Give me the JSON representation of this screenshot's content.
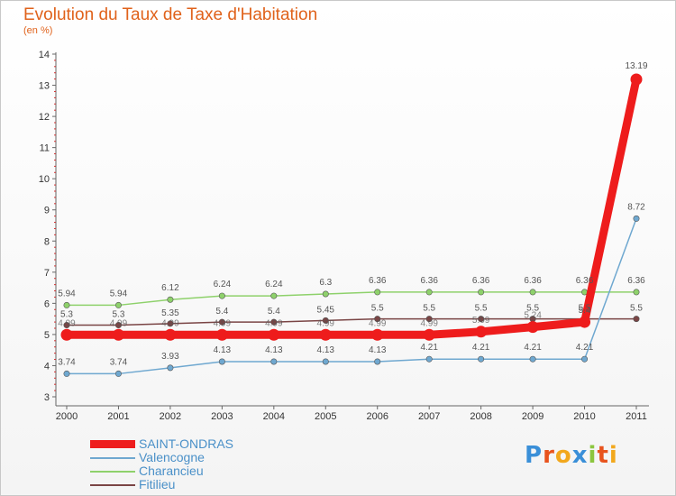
{
  "header": {
    "title": "Evolution du Taux de Taxe d'Habitation",
    "subtitle": "(en %)"
  },
  "logo": {
    "text": "Proxiti",
    "letters": [
      "P",
      "r",
      "o",
      "x",
      "i",
      "t",
      "i"
    ],
    "colors": [
      "#3a8fd8",
      "#e8541e",
      "#f2a81d",
      "#3a8fd8",
      "#8cc63f",
      "#e8541e",
      "#f2a81d"
    ]
  },
  "chart_data": {
    "type": "line",
    "categories": [
      "2000",
      "2001",
      "2002",
      "2003",
      "2004",
      "2005",
      "2006",
      "2007",
      "2008",
      "2009",
      "2010",
      "2011"
    ],
    "ylim": [
      3,
      14
    ],
    "yticks": [
      3,
      4,
      5,
      6,
      7,
      8,
      9,
      10,
      11,
      12,
      13,
      14
    ],
    "grid": false,
    "legend_position": "bottom-left",
    "series": [
      {
        "name": "SAINT-ONDRAS",
        "color": "#ee1c1c",
        "values": [
          4.99,
          4.99,
          4.99,
          4.99,
          4.99,
          4.99,
          4.99,
          4.99,
          5.09,
          5.24,
          5.4,
          13.19
        ],
        "labels": [
          "",
          "",
          "",
          "",
          "",
          "",
          "",
          "",
          "",
          "",
          "5.4",
          "13.19"
        ]
      },
      {
        "name": "Valencogne",
        "color": "#6fa8d0",
        "values": [
          3.74,
          3.74,
          3.93,
          4.13,
          4.13,
          4.13,
          4.13,
          4.21,
          4.21,
          4.21,
          4.21,
          8.72
        ],
        "labels": [
          "3.74",
          "3.74",
          "3.93",
          "4.13",
          "4.13",
          "4.13",
          "4.13",
          "4.21",
          "4.21",
          "4.21",
          "4.21",
          "8.72"
        ]
      },
      {
        "name": "Charancieu",
        "color": "#8ed16b",
        "values": [
          5.94,
          5.94,
          6.12,
          6.24,
          6.24,
          6.3,
          6.36,
          6.36,
          6.36,
          6.36,
          6.36,
          6.36
        ],
        "labels": [
          "5.94",
          "5.94",
          "6.12",
          "6.24",
          "6.24",
          "6.3",
          "6.36",
          "6.36",
          "6.36",
          "6.36",
          "6.36",
          "6.36"
        ]
      },
      {
        "name": "Fitilieu",
        "color": "#7a4545",
        "values": [
          5.3,
          5.3,
          5.35,
          5.4,
          5.4,
          5.45,
          5.5,
          5.5,
          5.5,
          5.5,
          5.5,
          5.5
        ],
        "labels": [
          "5.3",
          "5.3",
          "5.35",
          "5.4",
          "5.4",
          "5.45",
          "5.5",
          "5.5",
          "5.5",
          "5.5",
          "5.5",
          "5.5"
        ]
      }
    ],
    "saint_ondras_inline_labels": [
      "4.99",
      "4.99",
      "4.99",
      "4.99",
      "4.99",
      "4.99",
      "4.99",
      "4.99",
      "5.09",
      "5.24"
    ]
  }
}
